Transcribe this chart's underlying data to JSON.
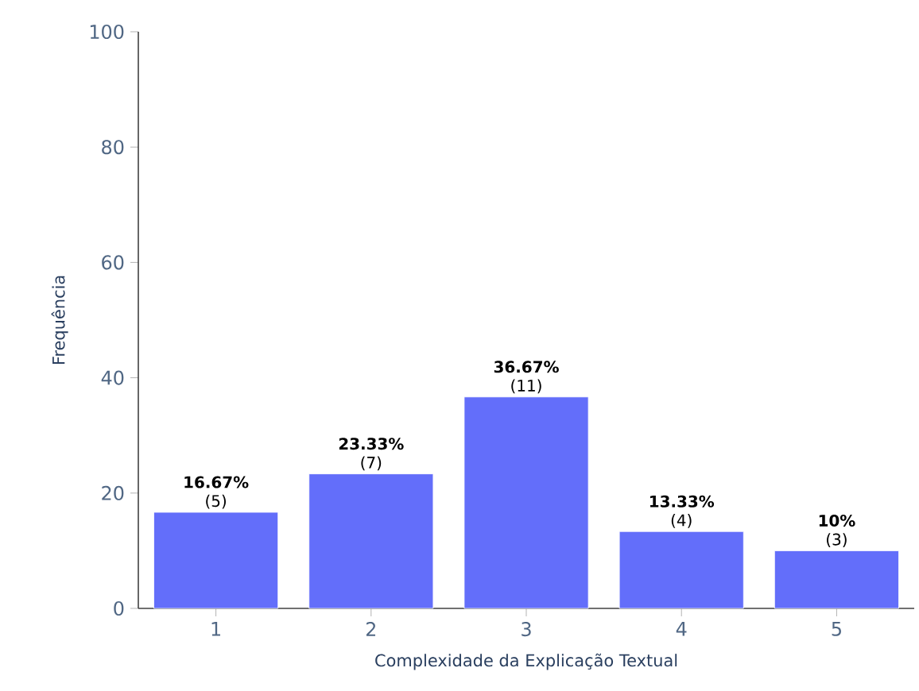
{
  "chart_data": {
    "type": "bar",
    "categories": [
      "1",
      "2",
      "3",
      "4",
      "5"
    ],
    "values": [
      16.67,
      23.33,
      36.67,
      13.33,
      10
    ],
    "color": "#636efa",
    "value_labels": [
      "**16.67%**",
      "**23.33%**",
      "**36.67%**",
      "**13.33%**",
      "**10%**"
    ],
    "annotations": [
      {
        "text": "(5)",
        "x": "1",
        "y": 16.67
      },
      {
        "text": "(7)",
        "x": "2",
        "y": 23.33
      },
      {
        "text": "(11)",
        "x": "3",
        "y": 36.67
      },
      {
        "text": "(4)",
        "x": "4",
        "y": 13.33
      },
      {
        "text": "(3)",
        "x": "5",
        "y": 10
      }
    ],
    "xlabel": "Complexidade da Explicação Textual",
    "ylabel": "Frequência",
    "ylim": [
      0,
      100
    ],
    "yticks": [
      0,
      20,
      40,
      60,
      80,
      100
    ]
  }
}
